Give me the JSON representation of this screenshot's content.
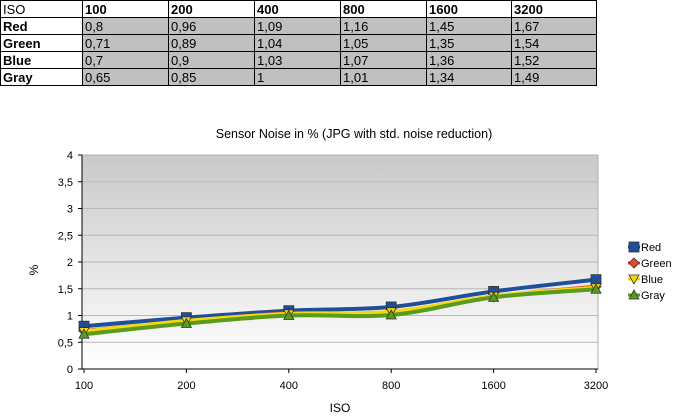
{
  "table": {
    "corner": "ISO",
    "headers": [
      "100",
      "200",
      "400",
      "800",
      "1600",
      "3200"
    ],
    "rows": [
      {
        "label": "Red",
        "cells": [
          "0,8",
          "0,96",
          "1,09",
          "1,16",
          "1,45",
          "1,67"
        ]
      },
      {
        "label": "Green",
        "cells": [
          "0,71",
          "0,89",
          "1,04",
          "1,05",
          "1,35",
          "1,54"
        ]
      },
      {
        "label": "Blue",
        "cells": [
          "0,7",
          "0,9",
          "1,03",
          "1,07",
          "1,36",
          "1,52"
        ]
      },
      {
        "label": "Gray",
        "cells": [
          "0,65",
          "0,85",
          "1",
          "1,01",
          "1,34",
          "1,49"
        ]
      }
    ]
  },
  "chart_data": {
    "type": "line",
    "title": "Sensor Noise in % (JPG with std. noise reduction)",
    "xlabel": "ISO",
    "ylabel": "%",
    "categories": [
      "100",
      "200",
      "400",
      "800",
      "1600",
      "3200"
    ],
    "ylim": [
      0,
      4
    ],
    "y_ticks": [
      "0",
      "0,5",
      "1",
      "1,5",
      "2",
      "2,5",
      "3",
      "3,5",
      "4"
    ],
    "y_tick_values": [
      0,
      0.5,
      1,
      1.5,
      2,
      2.5,
      3,
      3.5,
      4
    ],
    "grid": true,
    "legend_position": "right",
    "series": [
      {
        "name": "Red",
        "color": "#1f4e9a",
        "marker": "square",
        "values": [
          0.8,
          0.96,
          1.09,
          1.16,
          1.45,
          1.67
        ]
      },
      {
        "name": "Green",
        "color": "#e8472b",
        "marker": "diamond",
        "values": [
          0.71,
          0.89,
          1.04,
          1.05,
          1.35,
          1.54
        ]
      },
      {
        "name": "Blue",
        "color": "#f5d90a",
        "marker": "triangle-down",
        "values": [
          0.7,
          0.9,
          1.03,
          1.07,
          1.36,
          1.52
        ]
      },
      {
        "name": "Gray",
        "color": "#5a9a1c",
        "marker": "triangle-up",
        "values": [
          0.65,
          0.85,
          1.0,
          1.01,
          1.34,
          1.49
        ]
      }
    ]
  }
}
